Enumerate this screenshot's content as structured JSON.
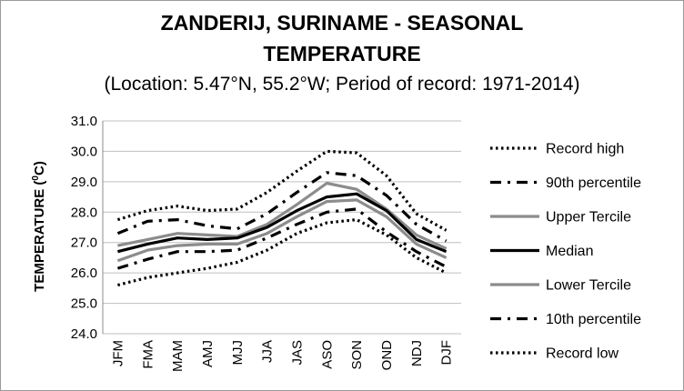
{
  "chart_data": {
    "type": "line",
    "title_line1": "ZANDERIJ, SURINAME - SEASONAL",
    "title_line2": "TEMPERATURE",
    "subtitle": "(Location: 5.47°N, 55.2°W; Period of record: 1971-2014)",
    "xlabel": "",
    "ylabel": "TEMPERATURE (",
    "ylabel_sup": "0",
    "ylabel_end": "C)",
    "ylim": [
      24.0,
      31.0
    ],
    "yticks": [
      "24.0",
      "25.0",
      "26.0",
      "27.0",
      "28.0",
      "29.0",
      "30.0",
      "31.0"
    ],
    "grid": true,
    "legend_position": "right",
    "categories": [
      "JFM",
      "FMA",
      "MAM",
      "AMJ",
      "MJJ",
      "JJA",
      "JAS",
      "ASO",
      "SON",
      "OND",
      "NDJ",
      "DJF"
    ],
    "series": [
      {
        "name": "Record high",
        "style": "dotted",
        "color": "#000000",
        "values": [
          27.75,
          28.05,
          28.2,
          28.05,
          28.1,
          28.65,
          29.35,
          30.0,
          29.95,
          29.2,
          27.95,
          27.4
        ]
      },
      {
        "name": "90th percentile",
        "style": "dashdot",
        "color": "#000000",
        "values": [
          27.3,
          27.7,
          27.75,
          27.55,
          27.45,
          27.95,
          28.65,
          29.3,
          29.2,
          28.55,
          27.6,
          27.05
        ]
      },
      {
        "name": "Upper Tercile",
        "style": "solid",
        "color": "#8c8c8c",
        "values": [
          26.9,
          27.1,
          27.3,
          27.25,
          27.2,
          27.6,
          28.25,
          28.95,
          28.75,
          28.1,
          27.25,
          26.8
        ]
      },
      {
        "name": "Median",
        "style": "solid",
        "color": "#000000",
        "values": [
          26.7,
          26.95,
          27.15,
          27.1,
          27.15,
          27.5,
          28.05,
          28.5,
          28.6,
          28.05,
          27.1,
          26.7
        ]
      },
      {
        "name": "Lower Tercile",
        "style": "solid",
        "color": "#8c8c8c",
        "values": [
          26.4,
          26.75,
          26.9,
          26.95,
          26.95,
          27.3,
          27.85,
          28.35,
          28.4,
          27.85,
          26.95,
          26.5
        ]
      },
      {
        "name": "10th percentile",
        "style": "dashdot",
        "color": "#000000",
        "values": [
          26.15,
          26.45,
          26.7,
          26.7,
          26.75,
          27.15,
          27.6,
          28.0,
          28.1,
          27.35,
          26.7,
          26.2
        ]
      },
      {
        "name": "Record low",
        "style": "dotted",
        "color": "#000000",
        "values": [
          25.6,
          25.85,
          26.0,
          26.15,
          26.35,
          26.75,
          27.3,
          27.65,
          27.75,
          27.25,
          26.5,
          26.0
        ]
      }
    ]
  }
}
